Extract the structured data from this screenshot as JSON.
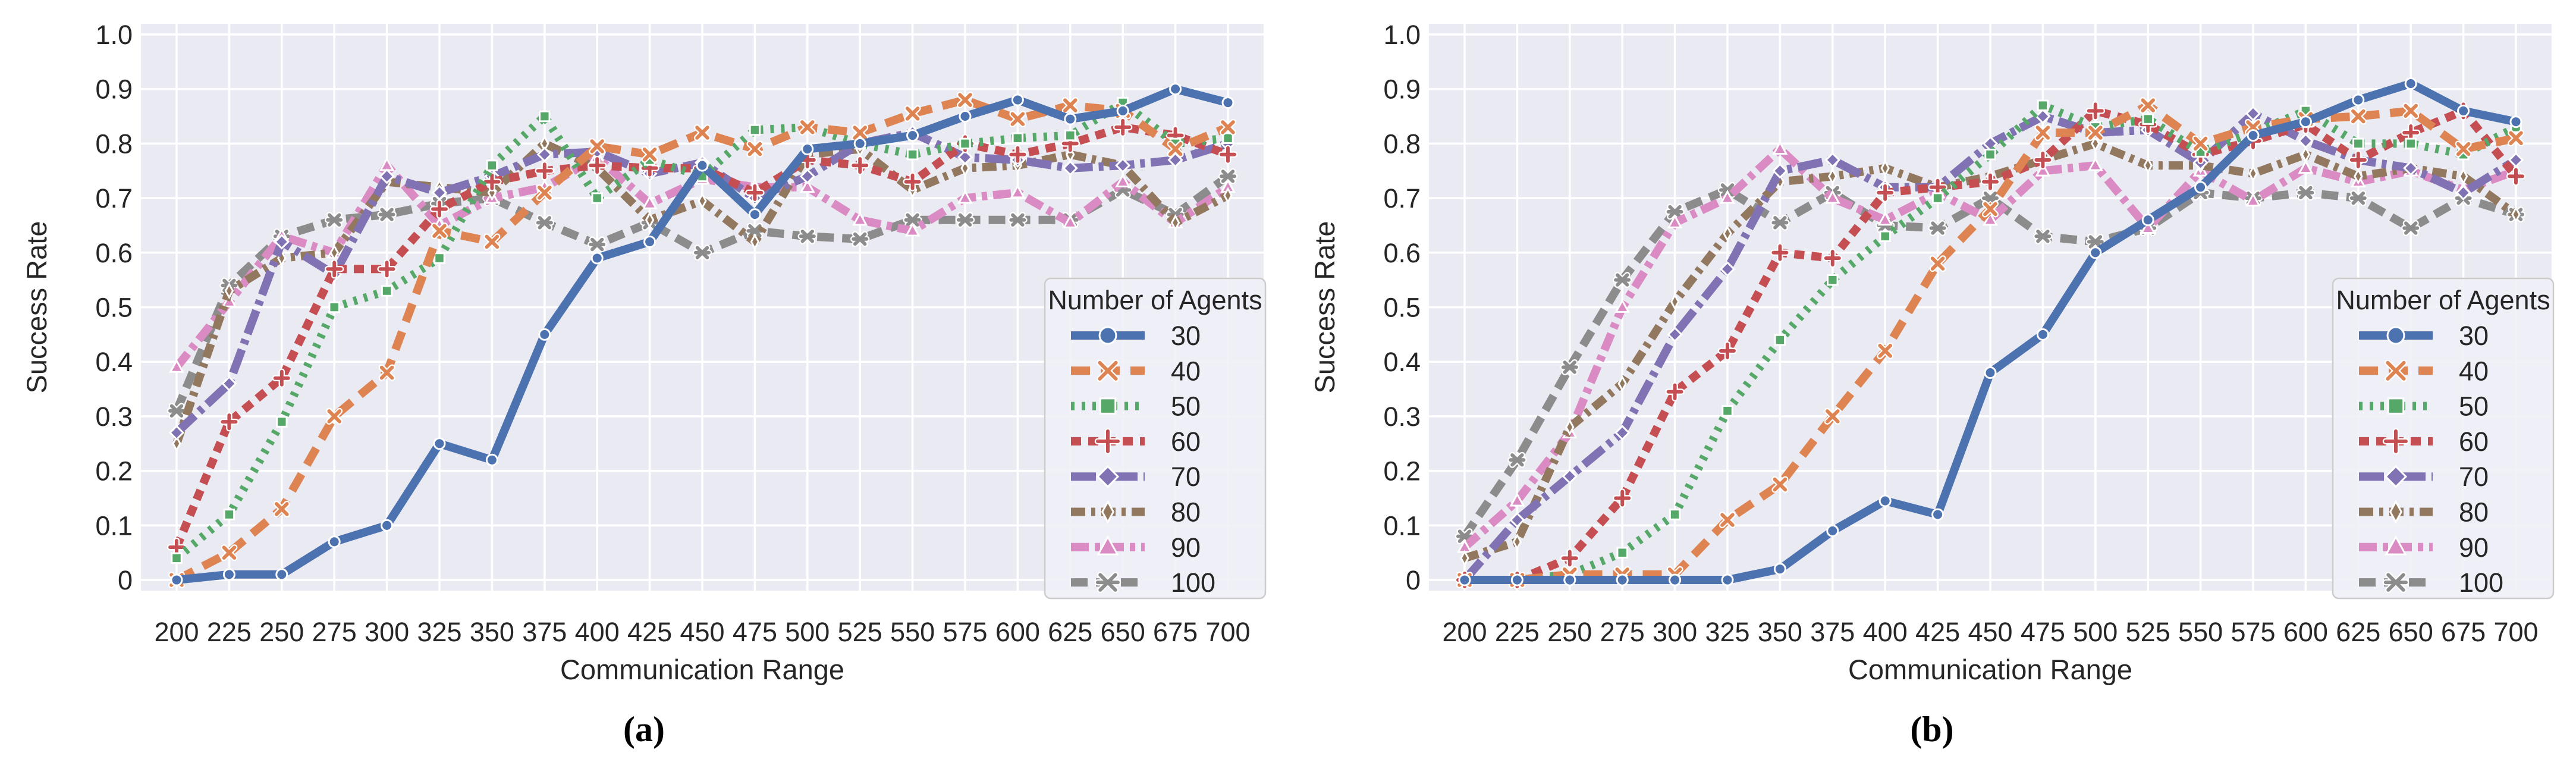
{
  "figure": {
    "background": "#ffffff",
    "plot_background": "#eaeaf2",
    "gridline_color": "#ffffff",
    "text_color": "#262626",
    "legend_background": "#f0f0f7",
    "legend_border": "#cccccc"
  },
  "chart_data": [
    {
      "type": "line",
      "caption": "(a)",
      "xlabel": "Communication Range",
      "ylabel": "Success Rate",
      "legend_title": "Number of Agents",
      "x": [
        200,
        225,
        250,
        275,
        300,
        325,
        350,
        375,
        400,
        425,
        450,
        475,
        500,
        525,
        550,
        575,
        600,
        625,
        650,
        675,
        700
      ],
      "xlim": [
        200,
        700
      ],
      "ylim": [
        0,
        1
      ],
      "ytick_labels": [
        "0",
        "0.1",
        "0.2",
        "0.3",
        "0.4",
        "0.5",
        "0.6",
        "0.7",
        "0.8",
        "0.9",
        "1.0"
      ],
      "grid": true,
      "legend_position": "lower right inside",
      "series": [
        {
          "name": "30",
          "color": "#4C72B0",
          "dash": "solid",
          "marker": "circle",
          "values": [
            0.0,
            0.01,
            0.01,
            0.07,
            0.1,
            0.25,
            0.22,
            0.45,
            0.59,
            0.62,
            0.76,
            0.67,
            0.79,
            0.8,
            0.815,
            0.85,
            0.88,
            0.845,
            0.86,
            0.9,
            0.875
          ]
        },
        {
          "name": "40",
          "color": "#DD8452",
          "dash": "dashed-long",
          "marker": "x",
          "values": [
            0.0,
            0.05,
            0.13,
            0.3,
            0.38,
            0.64,
            0.62,
            0.71,
            0.795,
            0.78,
            0.82,
            0.79,
            0.83,
            0.82,
            0.855,
            0.88,
            0.845,
            0.87,
            0.86,
            0.79,
            0.83
          ]
        },
        {
          "name": "50",
          "color": "#55A868",
          "dash": "dotted",
          "marker": "square",
          "values": [
            0.04,
            0.12,
            0.29,
            0.5,
            0.53,
            0.59,
            0.76,
            0.85,
            0.7,
            0.77,
            0.74,
            0.825,
            0.83,
            0.8,
            0.78,
            0.8,
            0.81,
            0.815,
            0.875,
            0.8,
            0.81
          ]
        },
        {
          "name": "60",
          "color": "#C44E52",
          "dash": "dashed",
          "marker": "plus",
          "values": [
            0.06,
            0.29,
            0.37,
            0.57,
            0.57,
            0.68,
            0.73,
            0.75,
            0.76,
            0.755,
            0.755,
            0.71,
            0.77,
            0.76,
            0.73,
            0.8,
            0.78,
            0.8,
            0.83,
            0.815,
            0.78
          ]
        },
        {
          "name": "70",
          "color": "#8172B3",
          "dash": "dashdot-long",
          "marker": "diamond",
          "values": [
            0.27,
            0.36,
            0.62,
            0.56,
            0.74,
            0.71,
            0.74,
            0.78,
            0.785,
            0.745,
            0.765,
            0.7,
            0.74,
            0.8,
            0.82,
            0.775,
            0.77,
            0.755,
            0.76,
            0.77,
            0.8
          ]
        },
        {
          "name": "80",
          "color": "#937860",
          "dash": "dashdot",
          "marker": "thin-diamond",
          "values": [
            0.25,
            0.53,
            0.59,
            0.6,
            0.73,
            0.72,
            0.71,
            0.8,
            0.755,
            0.66,
            0.695,
            0.62,
            0.78,
            0.79,
            0.715,
            0.755,
            0.76,
            0.78,
            0.76,
            0.655,
            0.705
          ]
        },
        {
          "name": "90",
          "color": "#DA8BC3",
          "dash": "dashdot-wide",
          "marker": "triangle",
          "values": [
            0.39,
            0.51,
            0.63,
            0.6,
            0.76,
            0.65,
            0.7,
            0.72,
            0.775,
            0.69,
            0.735,
            0.72,
            0.72,
            0.66,
            0.64,
            0.7,
            0.71,
            0.655,
            0.73,
            0.655,
            0.72
          ]
        },
        {
          "name": "100",
          "color": "#8C8C8C",
          "dash": "dashed-med",
          "marker": "star",
          "values": [
            0.31,
            0.54,
            0.63,
            0.66,
            0.67,
            0.69,
            0.7,
            0.655,
            0.615,
            0.655,
            0.6,
            0.64,
            0.63,
            0.625,
            0.66,
            0.66,
            0.66,
            0.66,
            0.715,
            0.67,
            0.74
          ]
        }
      ]
    },
    {
      "type": "line",
      "caption": "(b)",
      "xlabel": "Communication Range",
      "ylabel": "Success Rate",
      "legend_title": "Number of Agents",
      "x": [
        200,
        225,
        250,
        275,
        300,
        325,
        350,
        375,
        400,
        425,
        450,
        475,
        500,
        525,
        550,
        575,
        600,
        625,
        650,
        675,
        700
      ],
      "xlim": [
        200,
        700
      ],
      "ylim": [
        0,
        1
      ],
      "ytick_labels": [
        "0",
        "0.1",
        "0.2",
        "0.3",
        "0.4",
        "0.5",
        "0.6",
        "0.7",
        "0.8",
        "0.9",
        "1.0"
      ],
      "grid": true,
      "legend_position": "lower right inside",
      "series": [
        {
          "name": "30",
          "color": "#4C72B0",
          "dash": "solid",
          "marker": "circle",
          "values": [
            0.0,
            0.0,
            0.0,
            0.0,
            0.0,
            0.0,
            0.02,
            0.09,
            0.145,
            0.12,
            0.38,
            0.45,
            0.6,
            0.66,
            0.72,
            0.815,
            0.84,
            0.88,
            0.91,
            0.86,
            0.84
          ]
        },
        {
          "name": "40",
          "color": "#DD8452",
          "dash": "dashed-long",
          "marker": "x",
          "values": [
            0.0,
            0.0,
            0.01,
            0.01,
            0.01,
            0.11,
            0.175,
            0.3,
            0.42,
            0.58,
            0.68,
            0.82,
            0.82,
            0.87,
            0.8,
            0.83,
            0.845,
            0.85,
            0.86,
            0.79,
            0.81
          ]
        },
        {
          "name": "50",
          "color": "#55A868",
          "dash": "dotted",
          "marker": "square",
          "values": [
            0.0,
            0.0,
            0.01,
            0.05,
            0.12,
            0.31,
            0.44,
            0.55,
            0.63,
            0.7,
            0.78,
            0.87,
            0.83,
            0.845,
            0.785,
            0.82,
            0.86,
            0.8,
            0.8,
            0.78,
            0.83
          ]
        },
        {
          "name": "60",
          "color": "#C44E52",
          "dash": "dashed",
          "marker": "plus",
          "values": [
            0.0,
            0.0,
            0.04,
            0.15,
            0.345,
            0.42,
            0.6,
            0.59,
            0.71,
            0.72,
            0.73,
            0.77,
            0.86,
            0.835,
            0.78,
            0.805,
            0.835,
            0.77,
            0.82,
            0.86,
            0.74
          ]
        },
        {
          "name": "70",
          "color": "#8172B3",
          "dash": "dashdot-long",
          "marker": "diamond",
          "values": [
            0.0,
            0.11,
            0.19,
            0.27,
            0.45,
            0.57,
            0.75,
            0.77,
            0.72,
            0.72,
            0.8,
            0.85,
            0.82,
            0.825,
            0.765,
            0.855,
            0.805,
            0.77,
            0.755,
            0.71,
            0.77
          ]
        },
        {
          "name": "80",
          "color": "#937860",
          "dash": "dashdot",
          "marker": "thin-diamond",
          "values": [
            0.04,
            0.07,
            0.28,
            0.36,
            0.51,
            0.635,
            0.73,
            0.74,
            0.755,
            0.72,
            0.74,
            0.77,
            0.8,
            0.76,
            0.76,
            0.745,
            0.78,
            0.74,
            0.755,
            0.74,
            0.67
          ]
        },
        {
          "name": "90",
          "color": "#DA8BC3",
          "dash": "dashdot-wide",
          "marker": "triangle",
          "values": [
            0.06,
            0.145,
            0.27,
            0.5,
            0.655,
            0.7,
            0.79,
            0.7,
            0.66,
            0.71,
            0.66,
            0.75,
            0.76,
            0.645,
            0.75,
            0.695,
            0.755,
            0.73,
            0.75,
            0.715,
            0.75
          ]
        },
        {
          "name": "100",
          "color": "#8C8C8C",
          "dash": "dashed-med",
          "marker": "star",
          "values": [
            0.08,
            0.22,
            0.39,
            0.55,
            0.675,
            0.715,
            0.655,
            0.71,
            0.65,
            0.645,
            0.7,
            0.63,
            0.62,
            0.645,
            0.71,
            0.7,
            0.71,
            0.7,
            0.645,
            0.7,
            0.67
          ]
        }
      ]
    }
  ]
}
